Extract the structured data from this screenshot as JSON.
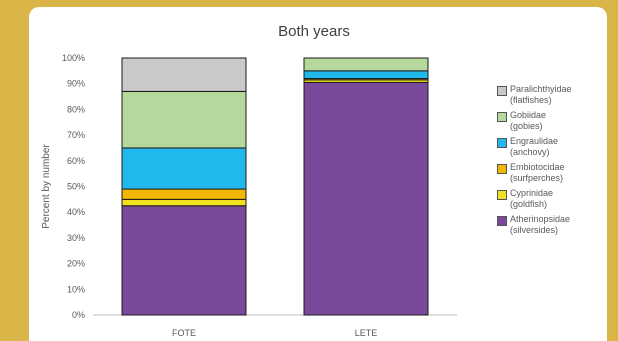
{
  "chart_data": {
    "type": "bar",
    "stacked": true,
    "title": "Both years",
    "ylabel": "Percent by number",
    "xlabel": "",
    "ylim": [
      0,
      100
    ],
    "yticks": [
      "0%",
      "10%",
      "20%",
      "30%",
      "40%",
      "50%",
      "60%",
      "70%",
      "80%",
      "90%",
      "100%"
    ],
    "categories": [
      "FOTE",
      "LETE"
    ],
    "series": [
      {
        "name": "Atherinopsidae\n(silversides)",
        "color": "#7a4a9a",
        "values": [
          42.5,
          90.5
        ]
      },
      {
        "name": "Cyprinidae\n(goldfish)",
        "color": "#f2df1f",
        "values": [
          2.5,
          1.0
        ]
      },
      {
        "name": "Embiotocidae\n(surfperches)",
        "color": "#f2b705",
        "values": [
          4.0,
          0.5
        ]
      },
      {
        "name": "Engraulidae\n(anchovy)",
        "color": "#21b9ec",
        "values": [
          16.0,
          3.0
        ]
      },
      {
        "name": "Gobiidae\n(gobies)",
        "color": "#b5d99c",
        "values": [
          22.0,
          5.0
        ]
      },
      {
        "name": "Paralichthyidae\n(flatfishes)",
        "color": "#c9c9c9",
        "values": [
          13.0,
          0.0
        ]
      }
    ],
    "legend_position": "right"
  }
}
